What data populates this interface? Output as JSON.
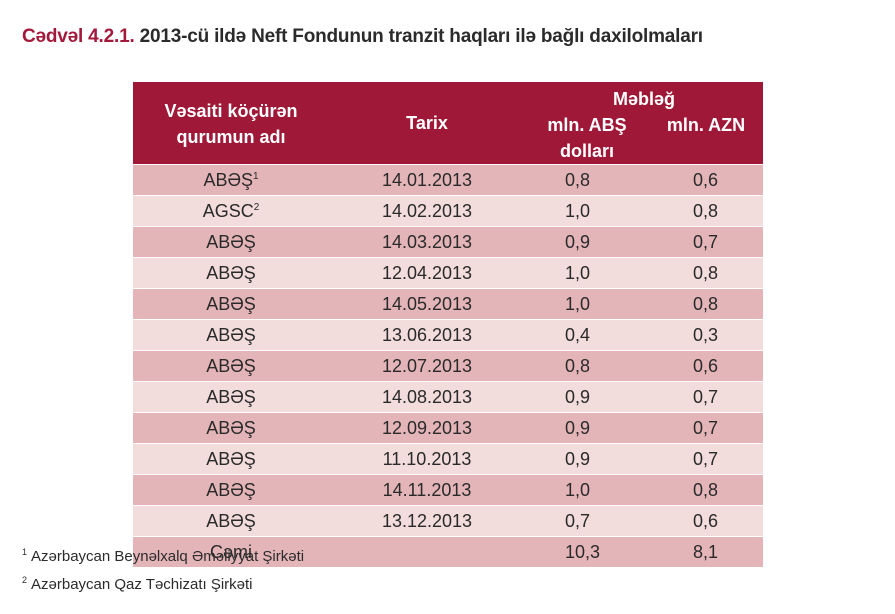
{
  "caption": {
    "number": "Cədvəl 4.2.1.",
    "title": "2013-cü ildə Neft Fondunun tranzit haqları ilə bağlı daxilolmaları"
  },
  "table": {
    "headers": {
      "source_line1": "Vəsaiti köçürən",
      "source_line2": "qurumun adı",
      "date": "Tarix",
      "amount": "Məbləğ",
      "usd": "mln. ABŞ dolları",
      "azn": "mln. AZN"
    },
    "rows": [
      {
        "source": "ABƏŞ",
        "sup": "1",
        "date": "14.01.2013",
        "usd": "0,8",
        "azn": "0,6"
      },
      {
        "source": "AGSC",
        "sup": "2",
        "date": "14.02.2013",
        "usd": "1,0",
        "azn": "0,8"
      },
      {
        "source": "ABƏŞ",
        "sup": "",
        "date": "14.03.2013",
        "usd": "0,9",
        "azn": "0,7"
      },
      {
        "source": "ABƏŞ",
        "sup": "",
        "date": "12.04.2013",
        "usd": "1,0",
        "azn": "0,8"
      },
      {
        "source": "ABƏŞ",
        "sup": "",
        "date": "14.05.2013",
        "usd": "1,0",
        "azn": "0,8"
      },
      {
        "source": "ABƏŞ",
        "sup": "",
        "date": "13.06.2013",
        "usd": "0,4",
        "azn": "0,3"
      },
      {
        "source": "ABƏŞ",
        "sup": "",
        "date": "12.07.2013",
        "usd": "0,8",
        "azn": "0,6"
      },
      {
        "source": "ABƏŞ",
        "sup": "",
        "date": "14.08.2013",
        "usd": "0,9",
        "azn": "0,7"
      },
      {
        "source": "ABƏŞ",
        "sup": "",
        "date": "12.09.2013",
        "usd": "0,9",
        "azn": "0,7"
      },
      {
        "source": "ABƏŞ",
        "sup": "",
        "date": "11.10.2013",
        "usd": "0,9",
        "azn": "0,7"
      },
      {
        "source": "ABƏŞ",
        "sup": "",
        "date": "14.11.2013",
        "usd": "1,0",
        "azn": "0,8"
      },
      {
        "source": "ABƏŞ",
        "sup": "",
        "date": "13.12.2013",
        "usd": "0,7",
        "azn": "0,6"
      }
    ],
    "total": {
      "label": "Cəmi",
      "date": "",
      "usd": "10,3",
      "azn": "8,1"
    }
  },
  "footnotes": [
    {
      "mark": "1",
      "text": "Azərbaycan Beynəlxalq Əməliyyat Şirkəti"
    },
    {
      "mark": "2",
      "text": "Azərbaycan Qaz Təchizatı Şirkəti"
    }
  ],
  "colors": {
    "header_bg": "#a01838",
    "caption_accent": "#a3193b",
    "row_dark": "#e4b5b8",
    "row_light": "#f2dcdc"
  }
}
